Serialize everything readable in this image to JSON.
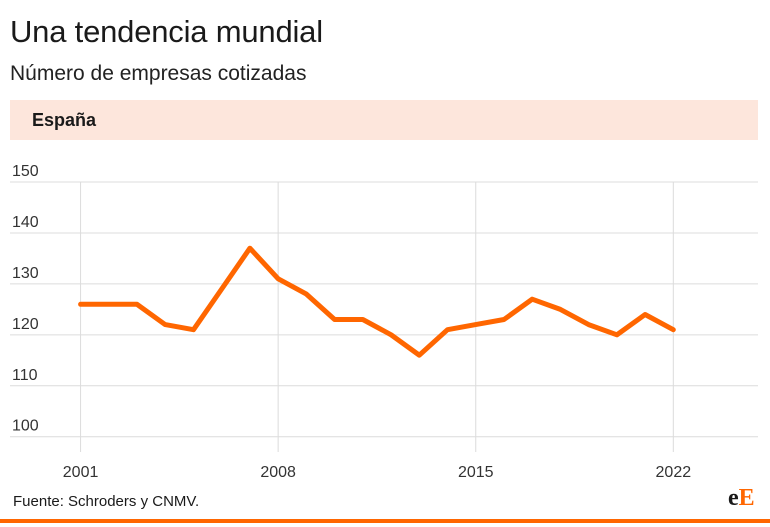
{
  "title": "Una tendencia mundial",
  "subtitle": "Número de empresas cotizadas",
  "panel_label": "España",
  "source": "Fuente: Schroders y CNMV.",
  "logo": {
    "e": "e",
    "E": "E"
  },
  "colors": {
    "line": "#ff6600",
    "panel": "#fde6dc",
    "grid": "#dcdcdc",
    "rule": "#ff6600"
  },
  "chart_data": {
    "type": "line",
    "title": "Una tendencia mundial",
    "subtitle": "Número de empresas cotizadas",
    "panel": "España",
    "x": [
      2001,
      2002,
      2003,
      2004,
      2005,
      2006,
      2007,
      2008,
      2009,
      2010,
      2011,
      2012,
      2013,
      2014,
      2015,
      2016,
      2017,
      2018,
      2019,
      2020,
      2021,
      2022
    ],
    "series": [
      {
        "values": [
          126,
          126,
          126,
          122,
          121,
          129,
          137,
          131,
          128,
          123,
          123,
          120,
          116,
          121,
          122,
          123,
          127,
          125,
          122,
          120,
          124,
          121
        ]
      }
    ],
    "x_ticks": [
      "2001",
      "2008",
      "2015",
      "2022"
    ],
    "y_ticks": [
      "100",
      "110",
      "120",
      "130",
      "140",
      "150"
    ],
    "xlim": [
      1998.5,
      2025
    ],
    "ylim": [
      97,
      150
    ],
    "grid": true,
    "legend": "none"
  }
}
